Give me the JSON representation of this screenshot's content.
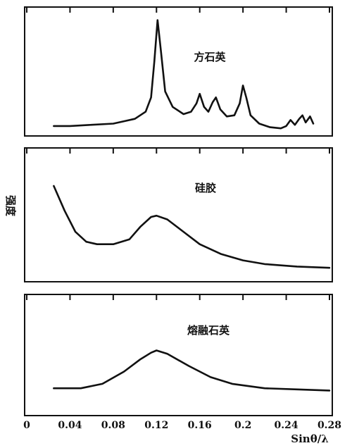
{
  "chart_data": [
    {
      "type": "line",
      "annotation": "方石英",
      "x": [
        0.025,
        0.04,
        0.06,
        0.08,
        0.09,
        0.1,
        0.11,
        0.115,
        0.118,
        0.121,
        0.124,
        0.128,
        0.135,
        0.145,
        0.152,
        0.157,
        0.16,
        0.164,
        0.168,
        0.172,
        0.175,
        0.179,
        0.185,
        0.192,
        0.197,
        0.2,
        0.203,
        0.207,
        0.215,
        0.225,
        0.235,
        0.24,
        0.244,
        0.248,
        0.252,
        0.255,
        0.258,
        0.262,
        0.265
      ],
      "values": [
        6,
        6,
        7,
        8,
        10,
        12,
        18,
        30,
        60,
        95,
        70,
        35,
        22,
        16,
        18,
        25,
        33,
        22,
        18,
        26,
        30,
        20,
        14,
        15,
        25,
        40,
        30,
        15,
        8,
        5,
        4,
        6,
        11,
        7,
        12,
        15,
        9,
        14,
        8
      ],
      "ylim": [
        0,
        100
      ]
    },
    {
      "type": "line",
      "annotation": "硅胶",
      "ylabel": "强度",
      "x": [
        0.025,
        0.035,
        0.045,
        0.055,
        0.065,
        0.08,
        0.095,
        0.105,
        0.115,
        0.12,
        0.13,
        0.145,
        0.16,
        0.18,
        0.2,
        0.22,
        0.25,
        0.28
      ],
      "values": [
        75,
        55,
        38,
        30,
        28,
        28,
        32,
        42,
        50,
        51,
        48,
        38,
        28,
        20,
        15,
        12,
        10,
        9
      ],
      "ylim": [
        0,
        100
      ]
    },
    {
      "type": "line",
      "annotation": "熔融石英",
      "xlabel": "Sinθ/λ",
      "x": [
        0.025,
        0.05,
        0.07,
        0.09,
        0.105,
        0.115,
        0.12,
        0.13,
        0.15,
        0.17,
        0.19,
        0.22,
        0.25,
        0.28
      ],
      "values": [
        22,
        22,
        26,
        37,
        48,
        54,
        56,
        53,
        42,
        32,
        26,
        22,
        21,
        20
      ],
      "ylim": [
        0,
        100
      ],
      "xlim": [
        0,
        0.28
      ],
      "xticks": [
        0,
        0.04,
        0.08,
        0.12,
        0.16,
        0.2,
        0.24,
        0.28
      ]
    }
  ]
}
